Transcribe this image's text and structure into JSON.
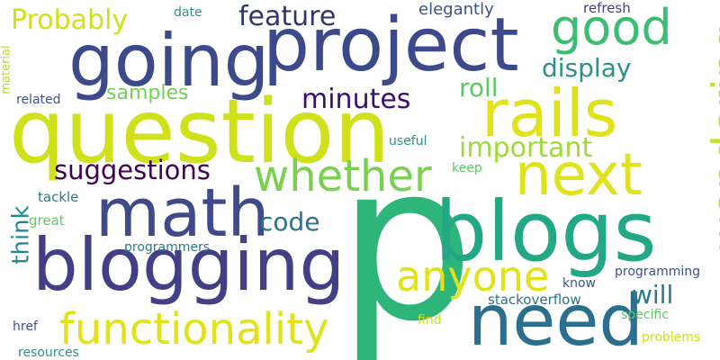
{
  "words": [
    {
      "text": "p",
      "color": "#2db57a",
      "orientation": "horizontal"
    },
    {
      "text": "question",
      "color": "#cfe11b",
      "orientation": "horizontal"
    },
    {
      "text": "project",
      "color": "#3c4a8b",
      "orientation": "horizontal"
    },
    {
      "text": "going",
      "color": "#3c4a8b",
      "orientation": "horizontal"
    },
    {
      "text": "blogs",
      "color": "#22a884",
      "orientation": "horizontal"
    },
    {
      "text": "blogging",
      "color": "#433e85",
      "orientation": "horizontal"
    },
    {
      "text": "math",
      "color": "#3e4a89",
      "orientation": "horizontal"
    },
    {
      "text": "rails",
      "color": "#dfe318",
      "orientation": "horizontal"
    },
    {
      "text": "need",
      "color": "#2a6f8e",
      "orientation": "horizontal"
    },
    {
      "text": "next",
      "color": "#dfe318",
      "orientation": "horizontal"
    },
    {
      "text": "functionality",
      "color": "#dfe318",
      "orientation": "horizontal"
    },
    {
      "text": "whether",
      "color": "#7ad151",
      "orientation": "horizontal"
    },
    {
      "text": "anyone",
      "color": "#dfe318",
      "orientation": "horizontal"
    },
    {
      "text": "good",
      "color": "#3dbc74",
      "orientation": "horizontal"
    },
    {
      "text": "wondering",
      "color": "#cae11f",
      "orientation": "vertical"
    },
    {
      "text": "suggestions",
      "color": "#440154",
      "orientation": "horizontal"
    },
    {
      "text": "minutes",
      "color": "#3b0f70",
      "orientation": "horizontal"
    },
    {
      "text": "feature",
      "color": "#31356e",
      "orientation": "horizontal"
    },
    {
      "text": "Probably",
      "color": "#cfe11b",
      "orientation": "horizontal"
    },
    {
      "text": "important",
      "color": "#a0da39",
      "orientation": "horizontal"
    },
    {
      "text": "display",
      "color": "#2e8f8a",
      "orientation": "horizontal"
    },
    {
      "text": "roll",
      "color": "#5ec962",
      "orientation": "horizontal"
    },
    {
      "text": "samples",
      "color": "#75d054",
      "orientation": "horizontal"
    },
    {
      "text": "code",
      "color": "#2c728e",
      "orientation": "horizontal"
    },
    {
      "text": "think",
      "color": "#238a8d",
      "orientation": "vertical"
    },
    {
      "text": "will",
      "color": "#2a788e",
      "orientation": "horizontal"
    },
    {
      "text": "elegantly",
      "color": "#3b528b",
      "orientation": "horizontal"
    },
    {
      "text": "refresh",
      "color": "#433e85",
      "orientation": "horizontal"
    },
    {
      "text": "date",
      "color": "#2e8f8a",
      "orientation": "horizontal"
    },
    {
      "text": "related",
      "color": "#3b528b",
      "orientation": "horizontal"
    },
    {
      "text": "material",
      "color": "#b8de29",
      "orientation": "vertical"
    },
    {
      "text": "tackle",
      "color": "#2a788e",
      "orientation": "horizontal"
    },
    {
      "text": "great",
      "color": "#5ec962",
      "orientation": "horizontal"
    },
    {
      "text": "useful",
      "color": "#2e8f8a",
      "orientation": "horizontal"
    },
    {
      "text": "keep",
      "color": "#5ec962",
      "orientation": "horizontal"
    },
    {
      "text": "programmers",
      "color": "#2a788e",
      "orientation": "horizontal"
    },
    {
      "text": "know",
      "color": "#3b528b",
      "orientation": "horizontal"
    },
    {
      "text": "programming",
      "color": "#3b528b",
      "orientation": "horizontal"
    },
    {
      "text": "stackoverflow",
      "color": "#2c728e",
      "orientation": "horizontal"
    },
    {
      "text": "specific",
      "color": "#5ec962",
      "orientation": "horizontal"
    },
    {
      "text": "find",
      "color": "#cfe11b",
      "orientation": "horizontal"
    },
    {
      "text": "href",
      "color": "#3b528b",
      "orientation": "horizontal"
    },
    {
      "text": "problems",
      "color": "#cfe11b",
      "orientation": "horizontal"
    },
    {
      "text": "resources",
      "color": "#2e8f8a",
      "orientation": "horizontal"
    }
  ]
}
